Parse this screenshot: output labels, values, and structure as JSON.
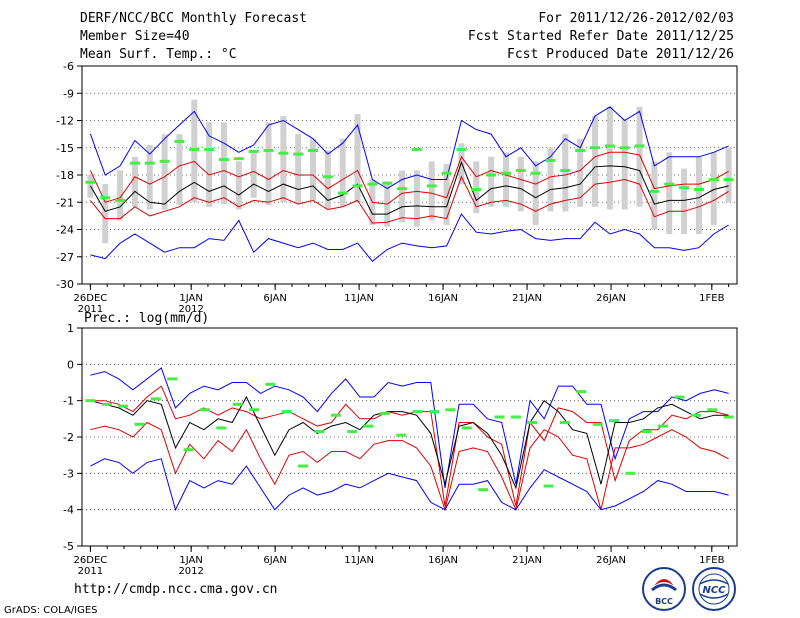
{
  "header": {
    "title": "DERF/NCC/BCC Monthly Forecast",
    "member_size": "Member Size=40",
    "variable_1": "Mean Surf. Temp.: °C",
    "forecast_for": "For 2011/12/26-2012/02/03",
    "fcst_started": "Fcst Started Refer Date 2011/12/25",
    "fcst_produced": "Fcst Produced Date 2011/12/26"
  },
  "footer": {
    "url": "http://cmdp.ncc.cma.gov.cn",
    "grads": "GrADS: COLA/IGES",
    "logo_bcc": "BCC",
    "logo_ncc": "NCC"
  },
  "colors": {
    "envelope": "#0000ff",
    "spread": "#e00000",
    "mean": "#000000",
    "box": "#d0d0d0",
    "median": "#44ee44"
  },
  "chart_data": [
    {
      "type": "line",
      "title": "Mean Surf. Temp.: °C",
      "ylim": [
        -30,
        -6
      ],
      "yticks": [
        "-6",
        "-9",
        "-12",
        "-15",
        "-18",
        "-21",
        "-24",
        "-27",
        "-30"
      ],
      "ytick_values": [
        -6,
        -9,
        -12,
        -15,
        -18,
        -21,
        -24,
        -27,
        -30
      ],
      "xlim": [
        -0.5,
        38.5
      ],
      "xtick_days": [
        0,
        6,
        11,
        16,
        21,
        26,
        31,
        37
      ],
      "xtick_labels": [
        "26DEC",
        "1JAN",
        "6JAN",
        "11JAN",
        "16JAN",
        "21JAN",
        "26JAN",
        "1FEB"
      ],
      "xtick_sublabels": [
        "2011",
        "2012",
        "",
        "",
        "",
        "",
        "",
        ""
      ],
      "series": [
        {
          "name": "max",
          "color": "#0000ff",
          "values": [
            -13.5,
            -18,
            -17,
            -14.2,
            -15.7,
            -14,
            -12.5,
            -11,
            -13.7,
            -14.5,
            -15.5,
            -14.7,
            -12.5,
            -12,
            -13,
            -14,
            -15.7,
            -14.5,
            -12.5,
            -18.5,
            -19.5,
            -18.5,
            -18,
            -18.5,
            -18.5,
            -12,
            -13,
            -13.5,
            -16,
            -15,
            -17,
            -16,
            -14,
            -15,
            -11.5,
            -10.5,
            -12,
            -11,
            -17,
            -16,
            -16,
            -16,
            -15.5,
            -14.8
          ]
        },
        {
          "name": "upper",
          "color": "#e00000",
          "values": [
            -17.5,
            -21,
            -20.5,
            -18.2,
            -19,
            -18.2,
            -17,
            -16.5,
            -18,
            -17.5,
            -18.2,
            -17.6,
            -18.5,
            -17.5,
            -18,
            -18,
            -19.5,
            -18.5,
            -17.5,
            -21,
            -21.2,
            -20,
            -19.8,
            -20,
            -20.5,
            -16,
            -18.2,
            -17.5,
            -18,
            -18.5,
            -19,
            -18.2,
            -18,
            -17.5,
            -16,
            -15.5,
            -15.5,
            -15.8,
            -19.5,
            -19.2,
            -19,
            -19,
            -18.5,
            -17.6
          ]
        },
        {
          "name": "mean",
          "color": "#000000",
          "values": [
            -19.2,
            -22,
            -21.5,
            -19.8,
            -21,
            -21.2,
            -19.8,
            -18.8,
            -19.8,
            -19.2,
            -20.2,
            -19,
            -19.8,
            -19,
            -19.6,
            -19.2,
            -20.8,
            -20.2,
            -19,
            -22.3,
            -22.3,
            -21.5,
            -21.4,
            -21.5,
            -21.5,
            -16.6,
            -20.8,
            -19.5,
            -19.2,
            -19.5,
            -20.5,
            -19.6,
            -19.4,
            -19,
            -17.1,
            -17,
            -17.1,
            -17.5,
            -21.2,
            -20.8,
            -20.8,
            -20.5,
            -19.6,
            -19.2
          ]
        },
        {
          "name": "lower",
          "color": "#e00000",
          "values": [
            -20.8,
            -22.8,
            -22.8,
            -21.5,
            -22.5,
            -22,
            -21.5,
            -20.5,
            -21,
            -20.5,
            -21.5,
            -20.8,
            -21,
            -20.5,
            -21.2,
            -20.8,
            -21.8,
            -21.5,
            -20.8,
            -23.3,
            -23.2,
            -22.7,
            -22.8,
            -22.5,
            -22.8,
            -18.2,
            -21.5,
            -21,
            -20.8,
            -21.2,
            -22,
            -21.2,
            -20.8,
            -20.5,
            -19,
            -18.8,
            -18.5,
            -19,
            -22.6,
            -22,
            -22,
            -21.5,
            -20.8,
            -19.8
          ]
        },
        {
          "name": "min",
          "color": "#0000ff",
          "values": [
            -26.8,
            -27.2,
            -25.5,
            -24.5,
            -25.5,
            -26.5,
            -26,
            -26,
            -25,
            -25.2,
            -23,
            -26.5,
            -25,
            -25.5,
            -26,
            -25.5,
            -26.2,
            -26.2,
            -25.5,
            -27.5,
            -26.2,
            -25.5,
            -25.8,
            -26,
            -25.8,
            -22.3,
            -24.3,
            -24.5,
            -24.2,
            -24,
            -25,
            -25.2,
            -25,
            -25,
            -23.2,
            -24.5,
            -24,
            -24.5,
            -26,
            -26,
            -26.3,
            -26,
            -24.5,
            -23.5
          ]
        }
      ],
      "boxes": {
        "low": [
          -20.5,
          -25.5,
          -23,
          -21.5,
          -21.8,
          -21.8,
          -21.3,
          -21,
          -21.5,
          -21.2,
          -21.8,
          -20.5,
          -21.3,
          -21,
          -21.2,
          -20.8,
          -21.8,
          -21.5,
          -21,
          -23.5,
          -23.7,
          -23.2,
          -23.7,
          -23,
          -23.5,
          -19,
          -22.2,
          -21.5,
          -21.5,
          -22,
          -23.5,
          -22,
          -22,
          -21.5,
          -21.5,
          -21.8,
          -21.8,
          -21.5,
          -24,
          -24.5,
          -24.5,
          -24.5,
          -23.5,
          -21
        ],
        "high": [
          -18,
          -19,
          -17.5,
          -16,
          -14.7,
          -13.5,
          -13.5,
          -9.7,
          -12.2,
          -12.2,
          -16.5,
          -15.5,
          -12.2,
          -11.5,
          -13.5,
          -14,
          -15.3,
          -14,
          -11.3,
          -18.5,
          -18.7,
          -17.5,
          -17.5,
          -16.5,
          -16.8,
          -14.5,
          -16.5,
          -16,
          -15.5,
          -16,
          -16.5,
          -15,
          -13.5,
          -14,
          -11.5,
          -10.5,
          -11.8,
          -10.5,
          -16.5,
          -15.5,
          -17.3,
          -16,
          -15.5,
          -15
        ],
        "median": [
          -18.8,
          -20.5,
          -20.8,
          -16.7,
          -16.7,
          -16.5,
          -14.3,
          -15.2,
          -15.2,
          -16.3,
          -16.2,
          -15.4,
          -15.3,
          -15.6,
          -15.7,
          -15.3,
          -18.2,
          -20,
          -19.2,
          -19,
          -18.9,
          -19.5,
          -15.2,
          -19.2,
          -17.8,
          -15.2,
          -19.6,
          -18,
          -17.8,
          -17.5,
          -17.8,
          -16.4,
          -17.5,
          -15.3,
          -15,
          -14.8,
          -15,
          -14.8,
          -19.8,
          -19,
          -19.4,
          -19.6,
          -18.5,
          -18.5
        ]
      }
    },
    {
      "type": "line",
      "title": "Prec.: log(mm/d)",
      "ylim": [
        -5,
        1
      ],
      "yticks": [
        "1",
        "0",
        "-1",
        "-2",
        "-3",
        "-4",
        "-5"
      ],
      "ytick_values": [
        1,
        0,
        -1,
        -2,
        -3,
        -4,
        -5
      ],
      "xlim": [
        -0.5,
        38.5
      ],
      "xtick_days": [
        0,
        6,
        11,
        16,
        21,
        26,
        31,
        37
      ],
      "xtick_labels": [
        "26DEC",
        "1JAN",
        "6JAN",
        "11JAN",
        "16JAN",
        "21JAN",
        "26JAN",
        "1FEB"
      ],
      "xtick_sublabels": [
        "2011",
        "2012",
        "",
        "",
        "",
        "",
        "",
        ""
      ],
      "series": [
        {
          "name": "max",
          "color": "#0000ff",
          "values": [
            -0.3,
            -0.2,
            -0.4,
            -0.7,
            -0.4,
            -0.1,
            -1.2,
            -0.8,
            -0.6,
            -0.7,
            -0.5,
            -0.5,
            -0.8,
            -0.6,
            -0.7,
            -0.9,
            -1.3,
            -0.8,
            -0.4,
            -0.9,
            -0.9,
            -0.5,
            -0.6,
            -0.5,
            -0.5,
            -3.4,
            -1.1,
            -1.1,
            -1.5,
            -1.6,
            -3.3,
            -1.0,
            -1.5,
            -0.6,
            -0.6,
            -1.1,
            -1.1,
            -2.6,
            -1.5,
            -1.3,
            -1.3,
            -0.9,
            -1.0,
            -0.8,
            -0.7,
            -0.8
          ]
        },
        {
          "name": "upper",
          "color": "#e00000",
          "values": [
            -1.0,
            -1.0,
            -1.1,
            -1.3,
            -0.9,
            -0.6,
            -1.5,
            -1.4,
            -1.2,
            -1.4,
            -1.2,
            -1.3,
            -1.5,
            -1.4,
            -1.3,
            -1.5,
            -1.7,
            -1.6,
            -1.1,
            -1.5,
            -1.5,
            -1.3,
            -1.4,
            -1.3,
            -1.3,
            -3.9,
            -1.6,
            -1.6,
            -2.0,
            -2.2,
            -3.9,
            -1.6,
            -2.1,
            -1.2,
            -1.3,
            -1.6,
            -1.6,
            -3.2,
            -2.1,
            -1.8,
            -1.8,
            -1.4,
            -1.5,
            -1.3,
            -1.3,
            -1.4
          ]
        },
        {
          "name": "mean",
          "color": "#000000",
          "values": [
            -1.0,
            -1.1,
            -1.2,
            -1.4,
            -1.0,
            -1.1,
            -2.3,
            -1.6,
            -1.8,
            -1.5,
            -1.6,
            -0.9,
            -1.7,
            -2.5,
            -1.8,
            -1.6,
            -1.9,
            -1.7,
            -1.6,
            -1.8,
            -1.4,
            -1.3,
            -1.3,
            -1.4,
            -1.9,
            -3.3,
            -1.7,
            -1.6,
            -1.9,
            -2.5,
            -3.4,
            -1.6,
            -1.0,
            -1.3,
            -1.8,
            -1.9,
            -3.3,
            -1.6,
            -1.6,
            -1.5,
            -1.2,
            -1.1,
            -1.3,
            -1.5,
            -1.4,
            -1.4
          ]
        },
        {
          "name": "lower",
          "color": "#e00000",
          "values": [
            -1.8,
            -1.7,
            -1.8,
            -2.0,
            -1.6,
            -1.8,
            -3.0,
            -2.2,
            -2.6,
            -2.1,
            -2.4,
            -1.8,
            -2.6,
            -3.3,
            -2.5,
            -2.4,
            -2.7,
            -2.4,
            -2.4,
            -2.6,
            -2.2,
            -2.1,
            -2.1,
            -2.3,
            -2.8,
            -4.0,
            -2.4,
            -2.3,
            -2.4,
            -3.1,
            -4.0,
            -2.3,
            -1.8,
            -2.0,
            -2.5,
            -2.6,
            -4.0,
            -2.3,
            -2.3,
            -2.2,
            -2.0,
            -1.8,
            -2.0,
            -2.3,
            -2.4,
            -2.6
          ]
        },
        {
          "name": "min",
          "color": "#0000ff",
          "values": [
            -2.8,
            -2.6,
            -2.7,
            -3.0,
            -2.7,
            -2.6,
            -4.0,
            -3.2,
            -3.4,
            -3.2,
            -3.3,
            -2.8,
            -3.4,
            -4.0,
            -3.6,
            -3.4,
            -3.6,
            -3.5,
            -3.3,
            -3.4,
            -3.2,
            -3.0,
            -3.1,
            -3.2,
            -3.8,
            -4.0,
            -3.3,
            -3.3,
            -3.2,
            -3.8,
            -4.0,
            -3.4,
            -2.9,
            -3.1,
            -3.3,
            -3.5,
            -4.0,
            -3.9,
            -3.7,
            -3.5,
            -3.2,
            -3.3,
            -3.5,
            -3.5,
            -3.5,
            -3.6
          ]
        },
        {
          "name": "median",
          "color": "#44ee44",
          "values": [
            -1.0,
            -1.1,
            -1.15,
            -1.65,
            -0.95,
            -0.4,
            -2.35,
            -1.25,
            -1.75,
            -1.1,
            -1.25,
            -0.55,
            -1.3,
            -2.8,
            -1.85,
            -1.4,
            -1.85,
            -1.7,
            -1.35,
            -1.95,
            -1.3,
            -1.3,
            -1.25,
            -1.75,
            -3.45,
            -1.45,
            -1.45,
            -1.6,
            -3.35,
            -1.6,
            -0.75,
            -1.65,
            -1.55,
            -3.0,
            -1.85,
            -1.7,
            -0.9,
            -1.4,
            -1.25,
            -1.45
          ]
        }
      ]
    }
  ]
}
